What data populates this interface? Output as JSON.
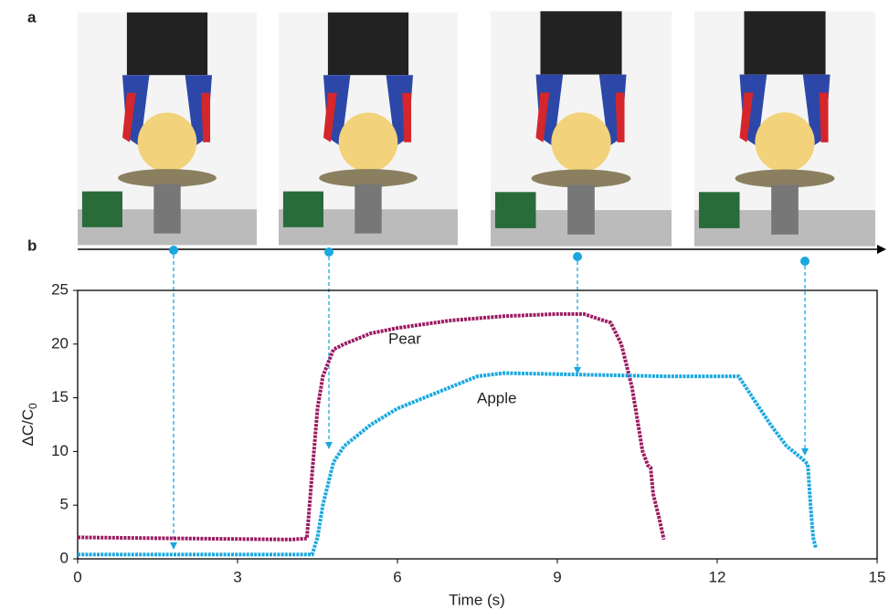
{
  "panel_labels": [
    "a",
    "b"
  ],
  "chart_data": {
    "type": "line",
    "xlabel": "Time (s)",
    "ylabel": {
      "main": "ΔC/C",
      "sub": "0"
    },
    "xlim": [
      0,
      15
    ],
    "xticks": [
      0,
      3,
      6,
      9,
      12,
      15
    ],
    "ylim": [
      0,
      25
    ],
    "yticks": [
      0,
      5,
      10,
      15,
      20,
      25
    ],
    "annotations": [
      "Pear",
      "Apple"
    ],
    "series": [
      {
        "name": "Pear",
        "color": "#9b1b62",
        "x": [
          0,
          2,
          4,
          4.3,
          4.4,
          4.5,
          4.6,
          4.8,
          5,
          5.5,
          6,
          7,
          8,
          9,
          9.5,
          9.8,
          10,
          10.2,
          10.4,
          10.5,
          10.6,
          10.7,
          10.75,
          10.8,
          10.9,
          11
        ],
        "values": [
          2.0,
          1.9,
          1.8,
          1.9,
          8,
          14,
          17,
          19.5,
          20,
          21,
          21.5,
          22.2,
          22.6,
          22.8,
          22.8,
          22.3,
          22,
          20,
          16,
          13,
          10,
          8.7,
          8.5,
          6,
          4,
          1.8
        ]
      },
      {
        "name": "Apple",
        "color": "#1aa8e0",
        "x": [
          0,
          4.4,
          4.5,
          4.6,
          4.8,
          5,
          5.5,
          6,
          7,
          7.5,
          8,
          9,
          10,
          11,
          12,
          12.4,
          12.6,
          13,
          13.3,
          13.6,
          13.7,
          13.75,
          13.8,
          13.85
        ],
        "values": [
          0.4,
          0.4,
          2,
          5,
          9,
          10.5,
          12.5,
          14,
          16,
          17,
          17.3,
          17.2,
          17.1,
          17,
          17,
          17,
          15.5,
          12.5,
          10.5,
          9.3,
          8.8,
          5,
          2,
          1
        ]
      }
    ]
  }
}
